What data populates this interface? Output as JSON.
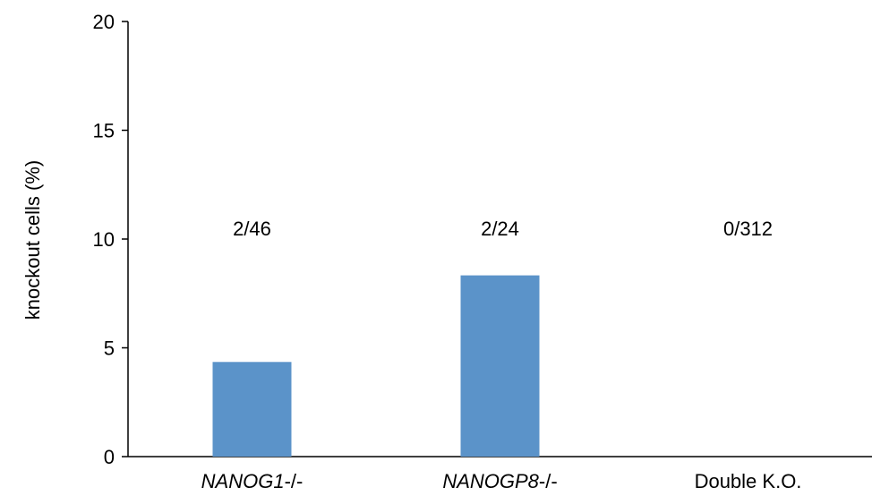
{
  "chart_data": {
    "type": "bar",
    "categories": [
      {
        "label": "NANOG1",
        "suffix": "-/-",
        "italic": true
      },
      {
        "label": "NANOGP8",
        "suffix": "-/-",
        "italic": true
      },
      {
        "label": "Double K.O.",
        "suffix": "",
        "italic": false
      }
    ],
    "values": [
      4.35,
      8.33,
      0
    ],
    "annotations": [
      "2/46",
      "2/24",
      "0/312"
    ],
    "annotation_y": 10.5,
    "title": "",
    "xlabel": "",
    "ylabel": "knockout cells (%)",
    "ylim": [
      0,
      20
    ],
    "yticks": [
      0,
      5,
      10,
      15,
      20
    ],
    "grid": false,
    "bar_color": "#5b93c9",
    "axis_color": "#000000"
  }
}
